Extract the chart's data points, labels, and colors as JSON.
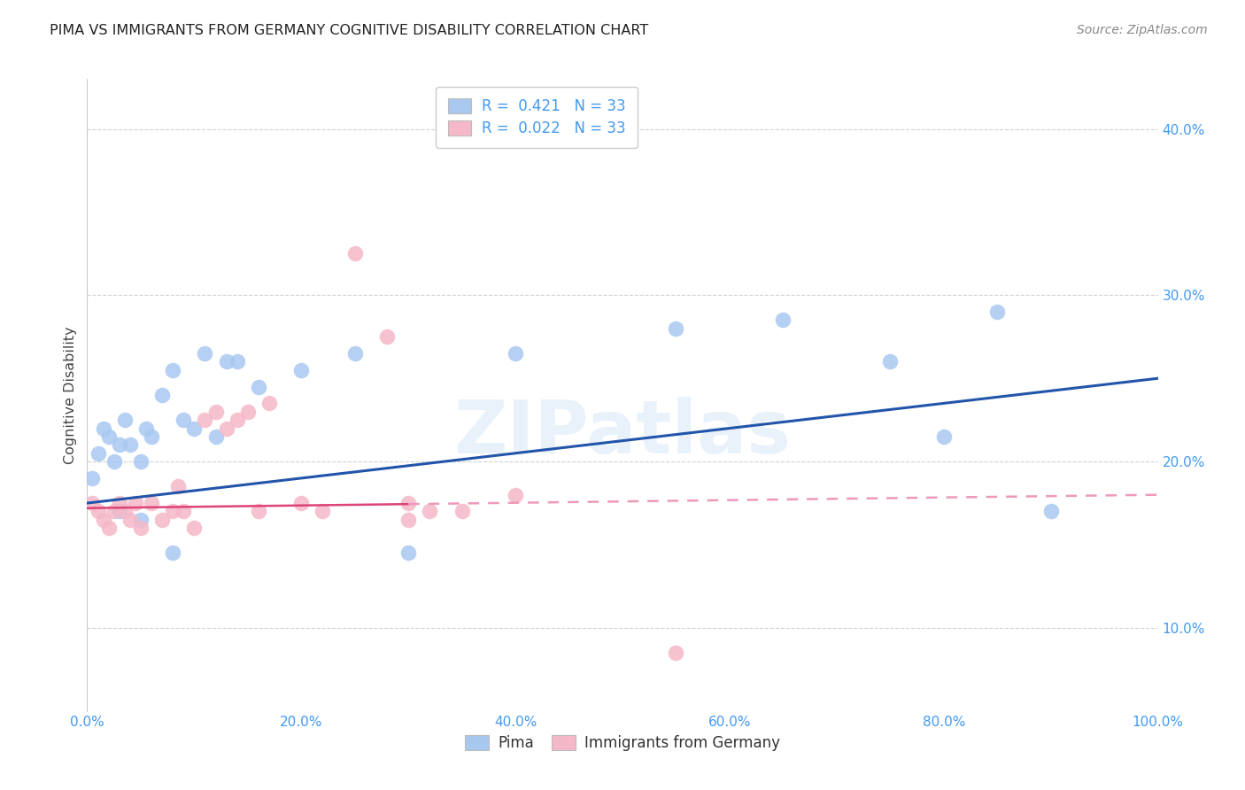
{
  "title": "PIMA VS IMMIGRANTS FROM GERMANY COGNITIVE DISABILITY CORRELATION CHART",
  "source": "Source: ZipAtlas.com",
  "ylabel": "Cognitive Disability",
  "watermark": "ZIPatlas",
  "blue_color": "#a8c8f0",
  "pink_color": "#f5b8c8",
  "blue_line_color": "#2255aa",
  "pink_line_color": "#dd4477",
  "pink_dash_color": "#ee99bb",
  "grid_color": "#cccccc",
  "axis_color": "#4499ee",
  "xtick_vals": [
    0,
    20,
    40,
    60,
    80,
    100
  ],
  "xtick_labels": [
    "0.0%",
    "20.0%",
    "40.0%",
    "60.0%",
    "80.0%",
    "100.0%"
  ],
  "ytick_vals": [
    10,
    20,
    30,
    40
  ],
  "ytick_labels": [
    "10.0%",
    "20.0%",
    "30.0%",
    "40.0%"
  ],
  "pima_x": [
    0.5,
    1.0,
    1.5,
    2.0,
    2.5,
    3.0,
    3.5,
    4.0,
    5.0,
    5.5,
    6.0,
    7.0,
    8.0,
    9.0,
    10.0,
    11.0,
    12.0,
    13.0,
    14.0,
    16.0,
    20.0,
    25.0,
    30.0,
    40.0,
    55.0,
    65.0,
    75.0,
    80.0,
    85.0,
    90.0,
    3.0,
    5.0,
    8.0
  ],
  "pima_y": [
    19.0,
    20.5,
    22.0,
    21.5,
    20.0,
    21.0,
    22.5,
    21.0,
    20.0,
    22.0,
    21.5,
    24.0,
    25.5,
    22.5,
    22.0,
    26.5,
    21.5,
    26.0,
    26.0,
    24.5,
    25.5,
    26.5,
    14.5,
    26.5,
    28.0,
    28.5,
    26.0,
    21.5,
    29.0,
    17.0,
    17.0,
    16.5,
    14.5
  ],
  "germany_x": [
    0.5,
    1.0,
    1.5,
    2.0,
    2.5,
    3.0,
    3.5,
    4.0,
    4.5,
    5.0,
    6.0,
    7.0,
    8.0,
    8.5,
    9.0,
    10.0,
    11.0,
    12.0,
    13.0,
    14.0,
    15.0,
    16.0,
    17.0,
    20.0,
    22.0,
    25.0,
    28.0,
    30.0,
    32.0,
    35.0,
    40.0,
    55.0,
    30.0
  ],
  "germany_y": [
    17.5,
    17.0,
    16.5,
    16.0,
    17.0,
    17.5,
    17.0,
    16.5,
    17.5,
    16.0,
    17.5,
    16.5,
    17.0,
    18.5,
    17.0,
    16.0,
    22.5,
    23.0,
    22.0,
    22.5,
    23.0,
    17.0,
    23.5,
    17.5,
    17.0,
    32.5,
    27.5,
    17.5,
    17.0,
    17.0,
    18.0,
    8.5,
    16.5
  ],
  "pink_solid_x_max": 30,
  "blue_intercept": 17.5,
  "blue_slope": 0.075,
  "pink_intercept": 17.2,
  "pink_slope": 0.008
}
